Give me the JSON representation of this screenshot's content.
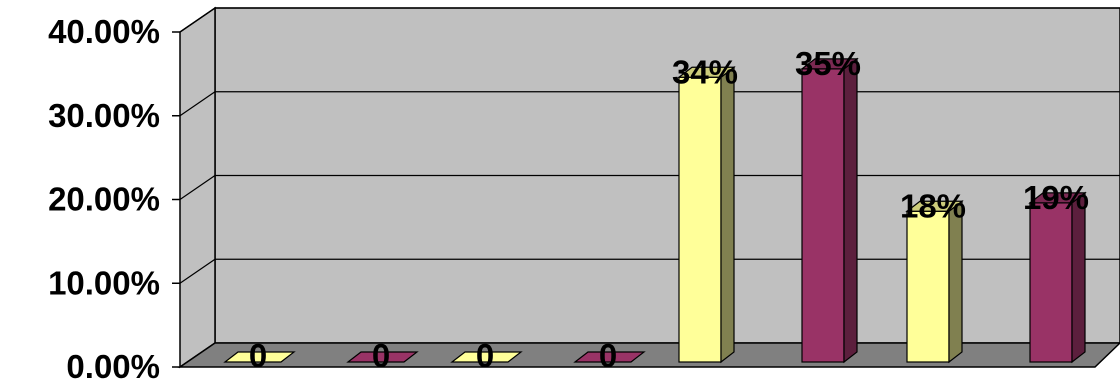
{
  "chart_data": {
    "type": "bar",
    "three_d": true,
    "ylim": [
      0,
      0.4
    ],
    "y_ticks": [
      {
        "value": 0.0,
        "label": "0.00%"
      },
      {
        "value": 0.1,
        "label": "10.00%"
      },
      {
        "value": 0.2,
        "label": "20.00%"
      },
      {
        "value": 0.3,
        "label": "30.00%"
      },
      {
        "value": 0.4,
        "label": "40.00%"
      }
    ],
    "grid": true,
    "legend": "none",
    "bars": [
      {
        "value": 0.0,
        "label": "0",
        "series": 0
      },
      {
        "value": 0.0,
        "label": "0",
        "series": 1
      },
      {
        "value": 0.0,
        "label": "0",
        "series": 0
      },
      {
        "value": 0.0,
        "label": "0",
        "series": 1
      },
      {
        "value": 0.34,
        "label": "34%",
        "series": 0
      },
      {
        "value": 0.35,
        "label": "35%",
        "series": 1
      },
      {
        "value": 0.18,
        "label": "18%",
        "series": 0
      },
      {
        "value": 0.19,
        "label": "19%",
        "series": 1
      }
    ],
    "colors": {
      "series": [
        {
          "front": "#ffff99",
          "side": "#808050",
          "top": "#cccc7a"
        },
        {
          "front": "#993366",
          "side": "#5c1f3d",
          "top": "#7a2952"
        }
      ],
      "wall": "#c0c0c0",
      "floor": "#808080",
      "gridline": "#000000"
    }
  }
}
